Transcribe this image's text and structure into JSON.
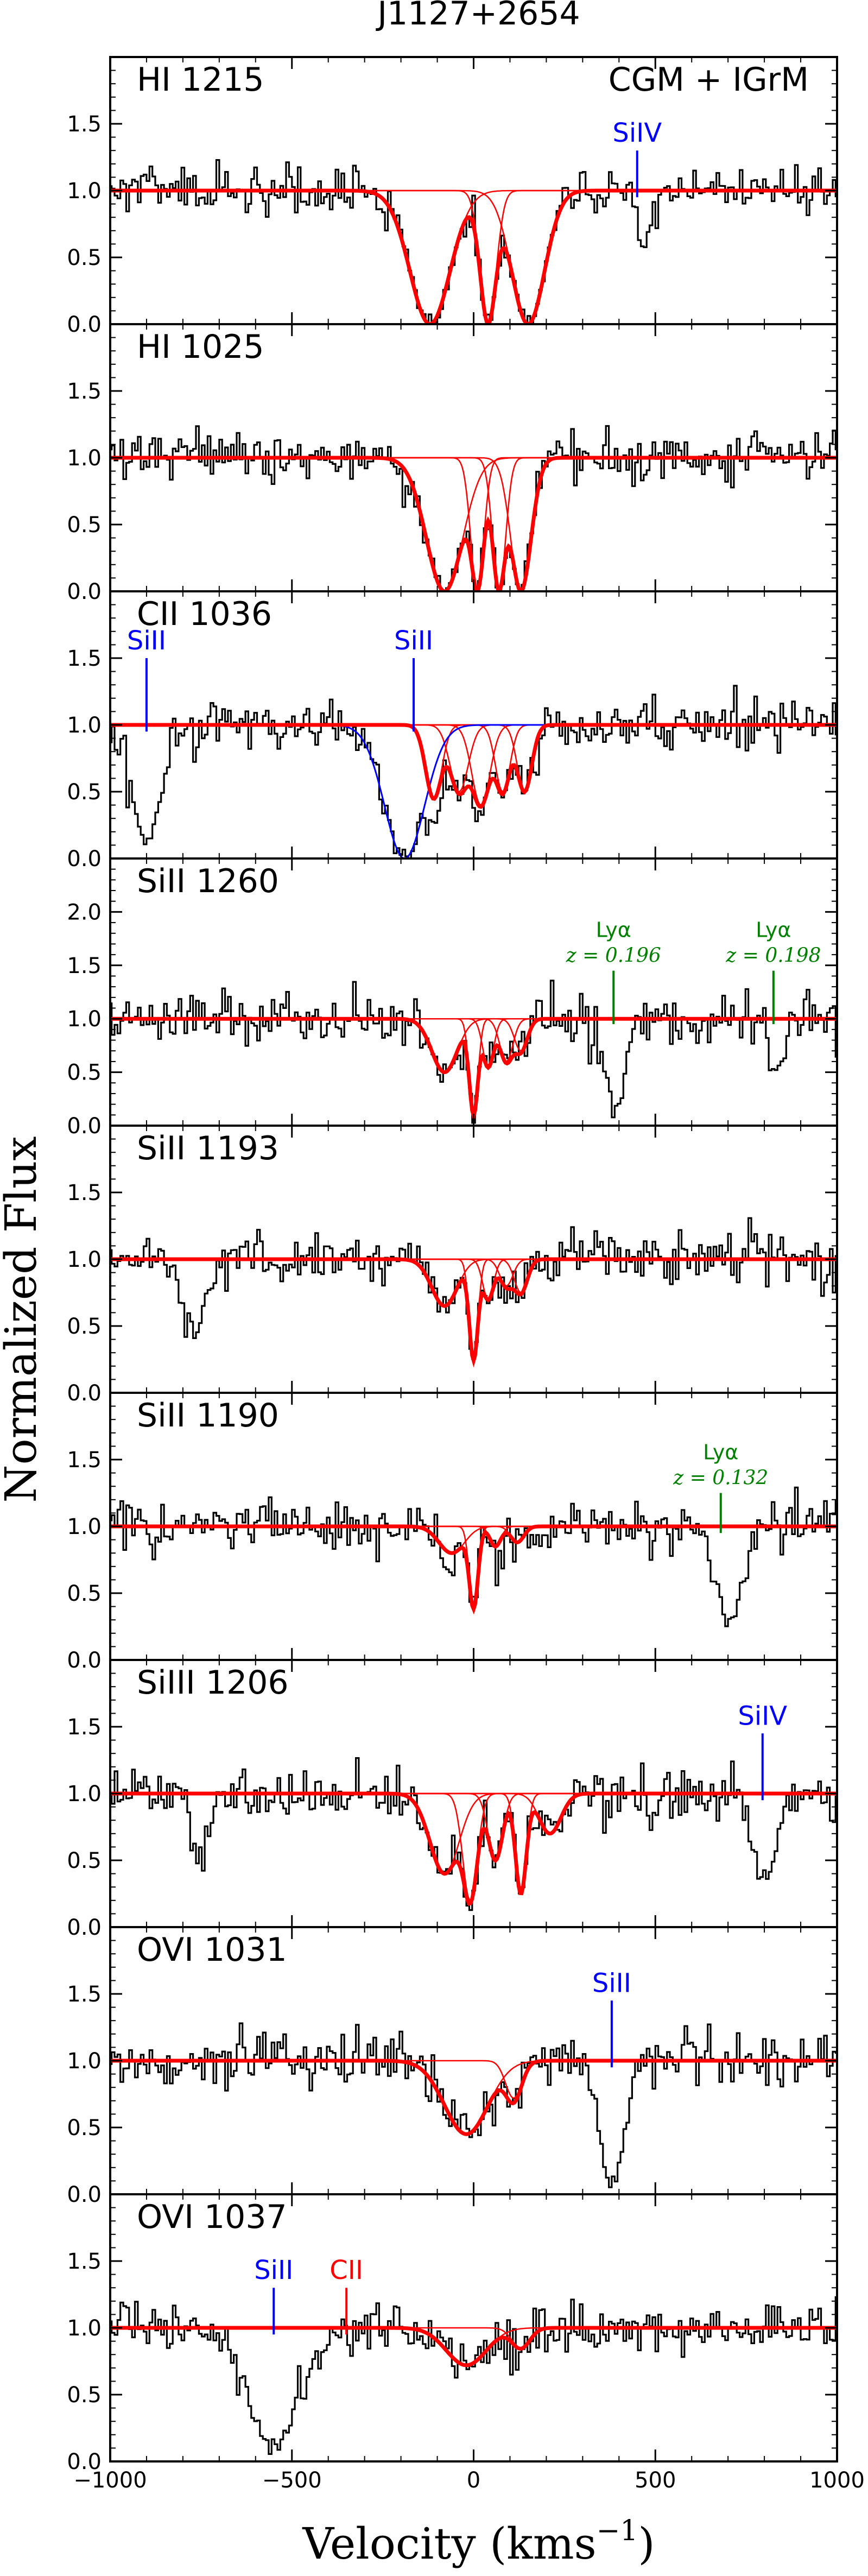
{
  "figure": {
    "title": "J1127+2654",
    "xlabel": "Velocity (kms",
    "xlabel_sup": "−1",
    "xlabel_close": ")",
    "ylabel": "Normalized Flux"
  },
  "colors": {
    "data": "#000000",
    "model": "#ff0000",
    "components": "#ff0000",
    "blend": "#0000ff",
    "lya_marker": "#008000"
  },
  "chart_data": {
    "type": "line",
    "description": "Stacked absorption-line spectra (normalized flux vs velocity) with Voigt-profile fits",
    "xlim": [
      -1000,
      1000
    ],
    "xticks": [
      -1000,
      -500,
      0,
      500,
      1000
    ],
    "xtick_labels": [
      "−1000",
      "−500",
      "0",
      "500",
      "1000"
    ],
    "panels": [
      {
        "label": "HI 1215",
        "note": "CGM + IGrM",
        "ylim": [
          0,
          2.0
        ],
        "yticks": [
          0.0,
          0.5,
          1.0,
          1.5
        ],
        "ytick_labels": [
          "0.0",
          "0.5",
          "1.0",
          "1.5"
        ],
        "noise": 0.09,
        "components": [
          {
            "v": -120,
            "depth": 1.0,
            "width": 55
          },
          {
            "v": 40,
            "depth": 1.0,
            "width": 22
          },
          {
            "v": 150,
            "depth": 1.0,
            "width": 45
          }
        ],
        "extra_features": [
          {
            "v": 470,
            "depth": 0.35,
            "width": 20
          }
        ],
        "markers": [
          {
            "label": "SiIV",
            "v": 450,
            "color": "blue",
            "y_top": 1.3,
            "y_bottom": 0.95
          }
        ]
      },
      {
        "label": "HI 1025",
        "note": "",
        "ylim": [
          0,
          2.0
        ],
        "yticks": [
          0.0,
          0.5,
          1.0,
          1.5
        ],
        "ytick_labels": [
          "0.0",
          "0.5",
          "1.0",
          "1.5"
        ],
        "noise": 0.1,
        "components": [
          {
            "v": -80,
            "depth": 1.0,
            "width": 50
          },
          {
            "v": 10,
            "depth": 1.0,
            "width": 18
          },
          {
            "v": 70,
            "depth": 1.0,
            "width": 18
          },
          {
            "v": 130,
            "depth": 1.0,
            "width": 28
          }
        ],
        "extra_features": [],
        "markers": []
      },
      {
        "label": "CII 1036",
        "note": "",
        "ylim": [
          0,
          2.0
        ],
        "yticks": [
          0.0,
          0.5,
          1.0,
          1.5
        ],
        "ytick_labels": [
          "0.0",
          "0.5",
          "1.0",
          "1.5"
        ],
        "noise": 0.1,
        "components": [
          {
            "v": -110,
            "depth": 0.55,
            "width": 22
          },
          {
            "v": -40,
            "depth": 0.5,
            "width": 25
          },
          {
            "v": 20,
            "depth": 0.6,
            "width": 25
          },
          {
            "v": 80,
            "depth": 0.5,
            "width": 20
          },
          {
            "v": 140,
            "depth": 0.5,
            "width": 20
          }
        ],
        "blend": {
          "v": -190,
          "depth": 1.0,
          "width": 55
        },
        "extra_features": [
          {
            "v": -900,
            "depth": 0.9,
            "width": 35
          }
        ],
        "markers": [
          {
            "label": "SiII",
            "v": -900,
            "color": "blue",
            "y_top": 1.5,
            "y_bottom": 0.95
          },
          {
            "label": "SiII",
            "v": -165,
            "color": "blue",
            "y_top": 1.5,
            "y_bottom": 0.95
          }
        ]
      },
      {
        "label": "SiII 1260",
        "note": "",
        "ylim": [
          0,
          2.5
        ],
        "yticks": [
          0.0,
          0.5,
          1.0,
          1.5,
          2.0
        ],
        "ytick_labels": [
          "0.0",
          "0.5",
          "1.0",
          "1.5",
          "2.0"
        ],
        "noise": 0.14,
        "components": [
          {
            "v": -80,
            "depth": 0.5,
            "width": 35
          },
          {
            "v": 0,
            "depth": 0.9,
            "width": 12
          },
          {
            "v": 40,
            "depth": 0.45,
            "width": 15
          },
          {
            "v": 90,
            "depth": 0.4,
            "width": 18
          },
          {
            "v": 130,
            "depth": 0.3,
            "width": 18
          }
        ],
        "extra_features": [
          {
            "v": 390,
            "depth": 0.9,
            "width": 25
          },
          {
            "v": 830,
            "depth": 0.6,
            "width": 20
          }
        ],
        "markers": [
          {
            "label": "Lyα",
            "sublabel": "z = 0.196",
            "v": 385,
            "color": "green",
            "y_top": 1.45,
            "y_bottom": 0.95
          },
          {
            "label": "Lyα",
            "sublabel": "z = 0.198",
            "v": 825,
            "color": "green",
            "y_top": 1.45,
            "y_bottom": 0.95
          }
        ]
      },
      {
        "label": "SiII 1193",
        "note": "",
        "ylim": [
          0,
          2.0
        ],
        "yticks": [
          0.0,
          0.5,
          1.0,
          1.5
        ],
        "ytick_labels": [
          "0.0",
          "0.5",
          "1.0",
          "1.5"
        ],
        "noise": 0.1,
        "components": [
          {
            "v": -80,
            "depth": 0.35,
            "width": 35
          },
          {
            "v": 0,
            "depth": 0.75,
            "width": 12
          },
          {
            "v": 40,
            "depth": 0.3,
            "width": 15
          },
          {
            "v": 90,
            "depth": 0.2,
            "width": 18
          },
          {
            "v": 130,
            "depth": 0.25,
            "width": 18
          }
        ],
        "extra_features": [
          {
            "v": -770,
            "depth": 0.55,
            "width": 35
          }
        ],
        "markers": []
      },
      {
        "label": "SiII 1190",
        "note": "",
        "ylim": [
          0,
          2.0
        ],
        "yticks": [
          0.0,
          0.5,
          1.0,
          1.5
        ],
        "ytick_labels": [
          "0.0",
          "0.5",
          "1.0",
          "1.5"
        ],
        "noise": 0.1,
        "components": [
          {
            "v": -60,
            "depth": 0.2,
            "width": 35
          },
          {
            "v": 0,
            "depth": 0.6,
            "width": 12
          },
          {
            "v": 60,
            "depth": 0.15,
            "width": 15
          },
          {
            "v": 120,
            "depth": 0.12,
            "width": 18
          }
        ],
        "extra_features": [
          {
            "v": 700,
            "depth": 0.7,
            "width": 35
          }
        ],
        "markers": [
          {
            "label": "Lyα",
            "sublabel": "z = 0.132",
            "v": 680,
            "color": "green",
            "y_top": 1.25,
            "y_bottom": 0.95
          }
        ]
      },
      {
        "label": "SiIII 1206",
        "note": "",
        "ylim": [
          0,
          2.0
        ],
        "yticks": [
          0.0,
          0.5,
          1.0,
          1.5
        ],
        "ytick_labels": [
          "0.0",
          "0.5",
          "1.0",
          "1.5"
        ],
        "noise": 0.1,
        "components": [
          {
            "v": -80,
            "depth": 0.6,
            "width": 40
          },
          {
            "v": -10,
            "depth": 0.8,
            "width": 20
          },
          {
            "v": 60,
            "depth": 0.5,
            "width": 20
          },
          {
            "v": 130,
            "depth": 0.75,
            "width": 15
          },
          {
            "v": 210,
            "depth": 0.3,
            "width": 30
          }
        ],
        "extra_features": [
          {
            "v": -750,
            "depth": 0.5,
            "width": 20
          },
          {
            "v": 800,
            "depth": 0.65,
            "width": 30
          }
        ],
        "markers": [
          {
            "label": "SiIV",
            "v": 795,
            "color": "blue",
            "y_top": 1.45,
            "y_bottom": 0.95
          }
        ]
      },
      {
        "label": "OVI 1031",
        "note": "",
        "ylim": [
          0,
          2.0
        ],
        "yticks": [
          0.0,
          0.5,
          1.0,
          1.5
        ],
        "ytick_labels": [
          "0.0",
          "0.5",
          "1.0",
          "1.5"
        ],
        "noise": 0.1,
        "components": [
          {
            "v": -20,
            "depth": 0.55,
            "width": 60
          },
          {
            "v": 110,
            "depth": 0.28,
            "width": 22
          }
        ],
        "extra_features": [
          {
            "v": 380,
            "depth": 0.9,
            "width": 35
          }
        ],
        "markers": [
          {
            "label": "SiII",
            "v": 380,
            "color": "blue",
            "y_top": 1.45,
            "y_bottom": 0.95
          }
        ]
      },
      {
        "label": "OVI 1037",
        "note": "",
        "ylim": [
          0,
          2.0
        ],
        "yticks": [
          0.0,
          0.5,
          1.0,
          1.5
        ],
        "ytick_labels": [
          "0.0",
          "0.5",
          "1.0",
          "1.5"
        ],
        "noise": 0.1,
        "components": [
          {
            "v": -20,
            "depth": 0.28,
            "width": 55
          },
          {
            "v": 130,
            "depth": 0.15,
            "width": 25
          }
        ],
        "extra_features": [
          {
            "v": -550,
            "depth": 0.9,
            "width": 70
          }
        ],
        "markers": [
          {
            "label": "SiII",
            "v": -550,
            "color": "blue",
            "y_top": 1.3,
            "y_bottom": 0.95
          },
          {
            "label": "CII",
            "v": -350,
            "color": "red",
            "y_top": 1.3,
            "y_bottom": 0.95
          }
        ]
      }
    ]
  }
}
